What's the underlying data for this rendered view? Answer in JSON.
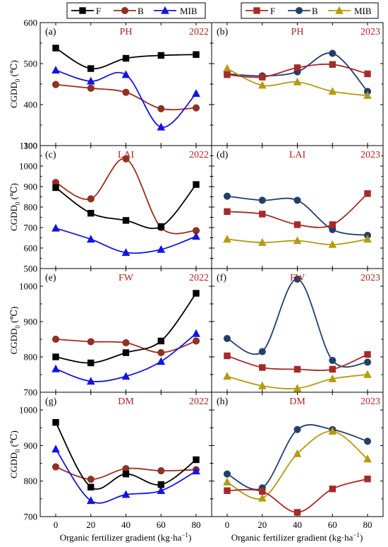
{
  "figure": {
    "xlabel": "Organic fertilizer gradient (kg·ha",
    "xlabel_sup": "−1",
    "xlabel_close": ")",
    "ylabel_main": "CGDD",
    "ylabel_sub": "0",
    "ylabel_unit": " (℃)",
    "legend_left": [
      "F",
      "B",
      "MIB"
    ],
    "legend_right": [
      "F",
      "B",
      "MIB"
    ]
  },
  "colors": {
    "left": {
      "F": "#000000",
      "B": "#9b2d1a",
      "MIB": "#1414e0"
    },
    "right": {
      "F": "#a52a2a",
      "B": "#1f3f6e",
      "MIB": "#b59a10"
    },
    "markers": {
      "F": "square",
      "B": "circle",
      "MIB": "triangle"
    }
  },
  "chart_data": [
    {
      "type": "line",
      "panel": "(a)",
      "title": "PH",
      "year": "2022",
      "x": [
        0,
        20,
        40,
        60,
        80
      ],
      "ylim": [
        300,
        600
      ],
      "yticks": [
        300,
        400,
        500,
        600
      ],
      "series": [
        {
          "name": "F",
          "values": [
            538,
            488,
            513,
            520,
            522
          ]
        },
        {
          "name": "B",
          "values": [
            449,
            440,
            430,
            390,
            392
          ]
        },
        {
          "name": "MIB",
          "values": [
            484,
            457,
            473,
            345,
            427
          ]
        }
      ]
    },
    {
      "type": "line",
      "panel": "(b)",
      "title": "PH",
      "year": "2023",
      "x": [
        0,
        20,
        40,
        60,
        80
      ],
      "ylim": [
        300,
        600
      ],
      "yticks": [
        300,
        400,
        500,
        600
      ],
      "series": [
        {
          "name": "F",
          "values": [
            473,
            467,
            490,
            498,
            475
          ]
        },
        {
          "name": "B",
          "values": [
            475,
            470,
            480,
            525,
            432
          ]
        },
        {
          "name": "MIB",
          "values": [
            488,
            447,
            455,
            432,
            422
          ]
        }
      ]
    },
    {
      "type": "line",
      "panel": "(c)",
      "title": "LAI",
      "year": "2022",
      "x": [
        0,
        20,
        40,
        60,
        80
      ],
      "ylim": [
        500,
        1100
      ],
      "yticks": [
        500,
        600,
        700,
        800,
        900,
        1000,
        1100
      ],
      "series": [
        {
          "name": "F",
          "values": [
            895,
            770,
            735,
            705,
            910
          ]
        },
        {
          "name": "B",
          "values": [
            920,
            840,
            1035,
            700,
            685
          ]
        },
        {
          "name": "MIB",
          "values": [
            697,
            643,
            578,
            593,
            657
          ]
        }
      ]
    },
    {
      "type": "line",
      "panel": "(d)",
      "title": "LAI",
      "year": "2023",
      "x": [
        0,
        20,
        40,
        60,
        80
      ],
      "ylim": [
        500,
        1100
      ],
      "yticks": [
        500,
        600,
        700,
        800,
        900,
        1000,
        1100
      ],
      "series": [
        {
          "name": "F",
          "values": [
            778,
            766,
            714,
            714,
            866
          ]
        },
        {
          "name": "B",
          "values": [
            853,
            833,
            833,
            690,
            662
          ]
        },
        {
          "name": "MIB",
          "values": [
            643,
            627,
            636,
            617,
            643
          ]
        }
      ]
    },
    {
      "type": "line",
      "panel": "(e)",
      "title": "FW",
      "year": "2022",
      "x": [
        0,
        20,
        40,
        60,
        80
      ],
      "ylim": [
        700,
        1050
      ],
      "yticks": [
        700,
        800,
        900,
        1000
      ],
      "series": [
        {
          "name": "F",
          "values": [
            800,
            783,
            812,
            845,
            980
          ]
        },
        {
          "name": "B",
          "values": [
            850,
            843,
            840,
            812,
            845
          ]
        },
        {
          "name": "MIB",
          "values": [
            766,
            731,
            745,
            787,
            866
          ]
        }
      ]
    },
    {
      "type": "line",
      "panel": "(f)",
      "title": "FW",
      "year": "2023",
      "x": [
        0,
        20,
        40,
        60,
        80
      ],
      "ylim": [
        700,
        1050
      ],
      "yticks": [
        700,
        800,
        900,
        1000
      ],
      "series": [
        {
          "name": "F",
          "values": [
            803,
            770,
            765,
            765,
            807
          ]
        },
        {
          "name": "B",
          "values": [
            852,
            815,
            1020,
            790,
            785
          ]
        },
        {
          "name": "MIB",
          "values": [
            745,
            718,
            711,
            738,
            750
          ]
        }
      ]
    },
    {
      "type": "line",
      "panel": "(g)",
      "title": "DM",
      "year": "2022",
      "x": [
        0,
        20,
        40,
        60,
        80
      ],
      "ylim": [
        700,
        1050
      ],
      "yticks": [
        700,
        800,
        900,
        1000
      ],
      "series": [
        {
          "name": "F",
          "values": [
            965,
            783,
            820,
            790,
            860
          ]
        },
        {
          "name": "B",
          "values": [
            840,
            805,
            835,
            829,
            832
          ]
        },
        {
          "name": "MIB",
          "values": [
            890,
            745,
            762,
            773,
            828
          ]
        }
      ]
    },
    {
      "type": "line",
      "panel": "(h)",
      "title": "DM",
      "year": "2023",
      "x": [
        0,
        20,
        40,
        60,
        80
      ],
      "ylim": [
        700,
        1050
      ],
      "yticks": [
        700,
        800,
        900,
        1000
      ],
      "series": [
        {
          "name": "F",
          "values": [
            773,
            771,
            712,
            778,
            806
          ]
        },
        {
          "name": "B",
          "values": [
            820,
            781,
            945,
            945,
            912
          ]
        },
        {
          "name": "MIB",
          "values": [
            797,
            752,
            877,
            940,
            862
          ]
        }
      ]
    }
  ]
}
